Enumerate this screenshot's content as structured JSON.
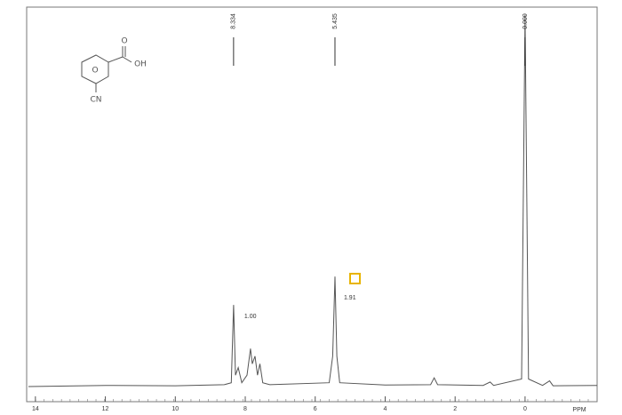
{
  "chart_data": {
    "type": "line",
    "x_label": "PPM",
    "xlim": [
      14.25,
      -2.06
    ],
    "ylim": [
      0,
      100
    ],
    "xticks": [
      14,
      12,
      10,
      8,
      6,
      4,
      2,
      0
    ],
    "color": "#555555",
    "x": [
      14.2,
      12,
      10,
      8.6,
      8.4,
      8.334,
      8.28,
      8.2,
      8.1,
      7.95,
      7.85,
      7.8,
      7.72,
      7.65,
      7.58,
      7.5,
      7.3,
      5.6,
      5.5,
      5.435,
      5.38,
      5.3,
      4,
      2.7,
      2.6,
      2.5,
      1.2,
      1.0,
      0.9,
      0.1,
      0.0,
      -0.1,
      -0.5,
      -0.7,
      -0.8,
      -2.06
    ],
    "values": [
      0,
      0.3,
      0.2,
      0.5,
      1,
      21.5,
      3,
      5,
      1,
      3,
      10,
      6,
      8,
      3,
      6,
      1,
      0.5,
      1,
      8,
      29,
      8,
      1,
      0.4,
      0.5,
      2.3,
      0.5,
      0.3,
      1.2,
      0.3,
      2,
      98,
      2,
      0.3,
      1.5,
      0.2,
      0.3
    ],
    "peak_marks": [
      8.334,
      5.435,
      {
        "value": 0,
        "label": "0.000"
      }
    ],
    "integrals": [
      {
        "value": 1,
        "label": "1.00"
      },
      1.91
    ],
    "structure_labels": [
      "O",
      "OH",
      "O",
      "CN"
    ]
  }
}
